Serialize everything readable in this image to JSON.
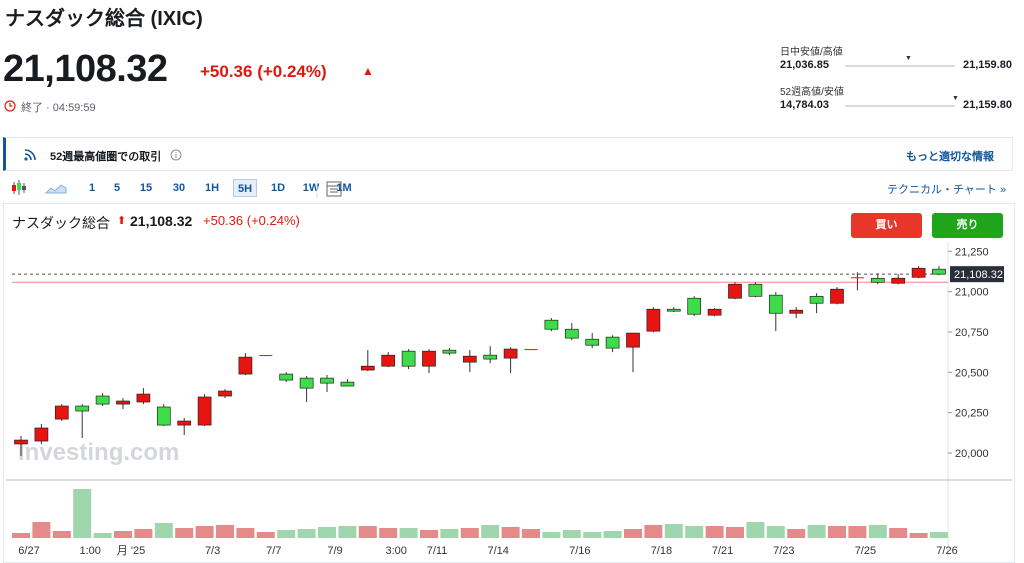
{
  "header": {
    "title": "ナスダック総合 (IXIC)",
    "price": "21,108.32",
    "change": "+50.36 (+0.24%)",
    "status": "終了 · 04:59:59"
  },
  "ranges": [
    {
      "label": "日中安値/高値",
      "low": "21,036.85",
      "high": "21,159.80"
    },
    {
      "label": "52週高値/安値",
      "low": "14,784.03",
      "high": "21,159.80"
    }
  ],
  "banner": {
    "text": "52週最高値圏での取引",
    "link": "もっと適切な情報"
  },
  "toolbar": {
    "intervals": [
      "1",
      "5",
      "15",
      "30",
      "1H",
      "5H",
      "1D",
      "1W",
      "1M"
    ],
    "active": "5H",
    "link": "テクニカル・チャート »"
  },
  "chart_header": {
    "name": "ナスダック総合",
    "price": "21,108.32",
    "change": "+50.36 (+0.24%)"
  },
  "buttons": {
    "buy": "買い",
    "sell": "売り"
  },
  "chart_data": {
    "type": "candlestick",
    "watermark": "Investing.com",
    "categories": [
      "6/27",
      null,
      null,
      "1:00",
      null,
      "月 '25",
      null,
      null,
      null,
      "7/3",
      null,
      null,
      "7/7",
      null,
      null,
      "7/9",
      null,
      null,
      "3:00",
      null,
      "7/11",
      null,
      null,
      "7/14",
      null,
      null,
      null,
      "7/16",
      null,
      null,
      null,
      "7/18",
      null,
      null,
      "7/21",
      null,
      null,
      "7/23",
      null,
      null,
      null,
      "7/25",
      null,
      null,
      null,
      "7/26"
    ],
    "open": [
      20056,
      20074,
      20210,
      20291,
      20353,
      20303,
      20316,
      20285,
      20173,
      20173,
      20353,
      20489,
      20604,
      20489,
      20464,
      20464,
      20439,
      20514,
      20538,
      20631,
      20538,
      20637,
      20563,
      20606,
      20588,
      20643,
      20823,
      20767,
      20705,
      20718,
      20656,
      20755,
      20891,
      20959,
      20854,
      20959,
      21046,
      20978,
      20866,
      20971,
      20928,
      21085,
      21082,
      21052,
      21089,
      21139
    ],
    "high": [
      20105,
      20180,
      20303,
      20303,
      20371,
      20340,
      20402,
      20303,
      20217,
      20365,
      20396,
      20619,
      20607,
      20501,
      20477,
      20483,
      20458,
      20638,
      20625,
      20644,
      20644,
      20650,
      20638,
      20662,
      20656,
      20644,
      20836,
      20805,
      20743,
      20730,
      20743,
      20904,
      20904,
      20972,
      20898,
      21058,
      21058,
      20997,
      20904,
      20990,
      21028,
      21120,
      21114,
      21108,
      21158,
      21158
    ],
    "low": [
      19981,
      20056,
      20198,
      20093,
      20291,
      20272,
      20303,
      20167,
      20111,
      20167,
      20340,
      20483,
      20600,
      20439,
      20316,
      20378,
      20415,
      20508,
      20532,
      20520,
      20495,
      20607,
      20501,
      20557,
      20495,
      20642,
      20755,
      20699,
      20650,
      20625,
      20501,
      20749,
      20873,
      20848,
      20848,
      20953,
      20966,
      20755,
      20836,
      20867,
      20922,
      21009,
      21046,
      21046,
      21083,
      21102
    ],
    "close": [
      20080,
      20155,
      20291,
      20260,
      20303,
      20322,
      20365,
      20173,
      20198,
      20347,
      20384,
      20594,
      20607,
      20452,
      20402,
      20433,
      20415,
      20538,
      20606,
      20538,
      20631,
      20619,
      20600,
      20582,
      20644,
      20644,
      20767,
      20712,
      20668,
      20650,
      20743,
      20891,
      20879,
      20860,
      20891,
      21046,
      20971,
      20866,
      20885,
      20928,
      21015,
      21089,
      21058,
      21083,
      21145,
      21108.32
    ],
    "volume": [
      5,
      16,
      7,
      49,
      5,
      7,
      9,
      15,
      10,
      12,
      13,
      10,
      6,
      8,
      9,
      11,
      12,
      12,
      10,
      10,
      8,
      9,
      10,
      13,
      11,
      9,
      6,
      8,
      6,
      7,
      9,
      13,
      14,
      12,
      12,
      11,
      16,
      12,
      9,
      13,
      12,
      12,
      13,
      10,
      5,
      6
    ],
    "up_color": "#e8140f",
    "down_color": "#3fdc4a",
    "up_volume_color": "#e48a8a",
    "down_volume_color": "#9fd6ae",
    "ylim": [
      19845,
      21320
    ],
    "yticks": [
      {
        "value": 20000,
        "label": "20,000"
      },
      {
        "value": 20250,
        "label": "20,250"
      },
      {
        "value": 20500,
        "label": "20,500"
      },
      {
        "value": 20750,
        "label": "20,750"
      },
      {
        "value": 21000,
        "label": "21,000"
      },
      {
        "value": 21250,
        "label": "21,250"
      }
    ],
    "last": {
      "value": 21108.32,
      "label": "21,108.32"
    },
    "prev_close": 21057.96
  }
}
